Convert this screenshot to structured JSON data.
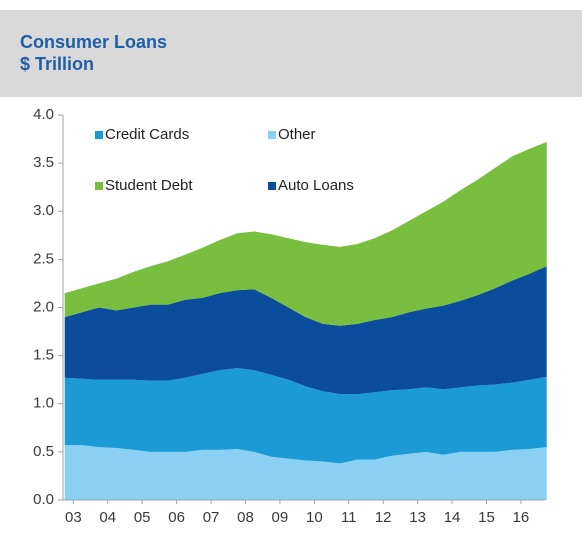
{
  "chart_data": {
    "type": "stacked-area",
    "title": "Consumer Loans",
    "subtitle": "$ Trillion",
    "x": [
      2002.75,
      2003.25,
      2003.75,
      2004.25,
      2004.75,
      2005.25,
      2005.75,
      2006.25,
      2006.75,
      2007.25,
      2007.75,
      2008.25,
      2008.75,
      2009.25,
      2009.75,
      2010.25,
      2010.75,
      2011.25,
      2011.75,
      2012.25,
      2012.75,
      2013.25,
      2013.75,
      2014.25,
      2014.75,
      2015.25,
      2015.75,
      2016.25,
      2016.75
    ],
    "series": [
      {
        "name": "Other",
        "color": "#8ad0f2",
        "values": [
          0.57,
          0.57,
          0.55,
          0.54,
          0.52,
          0.5,
          0.5,
          0.5,
          0.52,
          0.52,
          0.53,
          0.5,
          0.45,
          0.43,
          0.41,
          0.4,
          0.38,
          0.42,
          0.42,
          0.46,
          0.48,
          0.5,
          0.47,
          0.5,
          0.5,
          0.5,
          0.52,
          0.53,
          0.55
        ]
      },
      {
        "name": "Credit Cards",
        "color": "#1c9ad6",
        "values": [
          0.7,
          0.69,
          0.7,
          0.71,
          0.73,
          0.74,
          0.74,
          0.77,
          0.79,
          0.83,
          0.84,
          0.85,
          0.85,
          0.82,
          0.77,
          0.73,
          0.72,
          0.68,
          0.7,
          0.68,
          0.67,
          0.67,
          0.68,
          0.67,
          0.69,
          0.7,
          0.7,
          0.72,
          0.73
        ]
      },
      {
        "name": "Auto Loans",
        "color": "#0b4c9d",
        "values": [
          0.63,
          0.69,
          0.75,
          0.72,
          0.75,
          0.79,
          0.79,
          0.81,
          0.79,
          0.8,
          0.81,
          0.84,
          0.8,
          0.75,
          0.72,
          0.7,
          0.71,
          0.73,
          0.75,
          0.76,
          0.8,
          0.82,
          0.87,
          0.9,
          0.94,
          1.0,
          1.06,
          1.1,
          1.15
        ]
      },
      {
        "name": "Student Debt",
        "color": "#79bf3f",
        "values": [
          0.25,
          0.25,
          0.25,
          0.33,
          0.37,
          0.4,
          0.45,
          0.47,
          0.52,
          0.55,
          0.59,
          0.6,
          0.66,
          0.72,
          0.78,
          0.82,
          0.82,
          0.83,
          0.85,
          0.9,
          0.95,
          1.01,
          1.08,
          1.15,
          1.2,
          1.25,
          1.29,
          1.3,
          1.29
        ]
      }
    ],
    "xlim": [
      2002.7,
      2016.7
    ],
    "xticks": [
      {
        "value": 2003,
        "label": "03"
      },
      {
        "value": 2004,
        "label": "04"
      },
      {
        "value": 2005,
        "label": "05"
      },
      {
        "value": 2006,
        "label": "06"
      },
      {
        "value": 2007,
        "label": "07"
      },
      {
        "value": 2008,
        "label": "08"
      },
      {
        "value": 2009,
        "label": "09"
      },
      {
        "value": 2010,
        "label": "10"
      },
      {
        "value": 2011,
        "label": "11"
      },
      {
        "value": 2012,
        "label": "12"
      },
      {
        "value": 2013,
        "label": "13"
      },
      {
        "value": 2014,
        "label": "14"
      },
      {
        "value": 2015,
        "label": "15"
      },
      {
        "value": 2016,
        "label": "16"
      }
    ],
    "ylim": [
      0,
      4
    ],
    "yticks": [
      {
        "value": 0,
        "label": "0.0"
      },
      {
        "value": 0.5,
        "label": "0.5"
      },
      {
        "value": 1,
        "label": "1.0"
      },
      {
        "value": 1.5,
        "label": "1.5"
      },
      {
        "value": 2,
        "label": "2.0"
      },
      {
        "value": 2.5,
        "label": "2.5"
      },
      {
        "value": 3,
        "label": "3.0"
      },
      {
        "value": 3.5,
        "label": "3.5"
      },
      {
        "value": 4,
        "label": "4.0"
      }
    ],
    "grid": false,
    "legend": "top-left"
  }
}
